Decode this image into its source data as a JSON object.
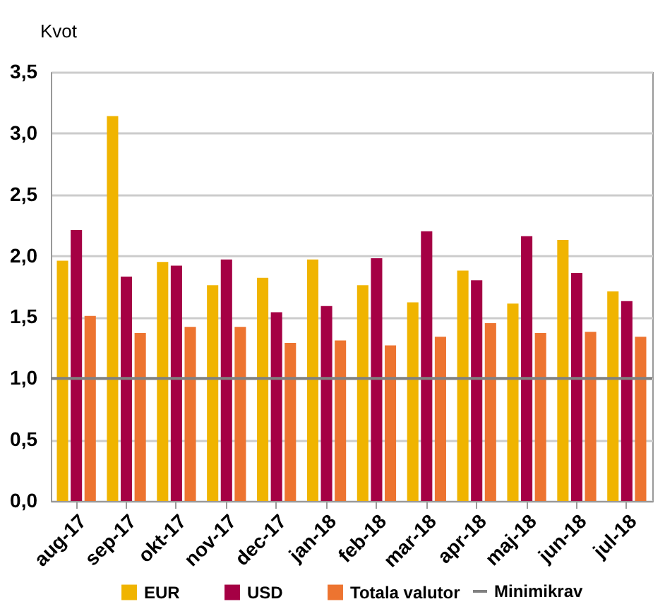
{
  "chart_data": {
    "type": "bar",
    "ylabel": "Kvot",
    "categories": [
      "aug-17",
      "sep-17",
      "okt-17",
      "nov-17",
      "dec-17",
      "jan-18",
      "feb-18",
      "mar-18",
      "apr-18",
      "maj-18",
      "jun-18",
      "jul-18"
    ],
    "series": [
      {
        "name": "EUR",
        "color": "#f0b400",
        "values": [
          1.96,
          3.14,
          1.95,
          1.76,
          1.82,
          1.97,
          1.76,
          1.62,
          1.88,
          1.61,
          2.13,
          1.71
        ]
      },
      {
        "name": "USD",
        "color": "#a50044",
        "values": [
          2.21,
          1.83,
          1.92,
          1.97,
          1.54,
          1.59,
          1.98,
          2.2,
          1.8,
          2.16,
          1.86,
          1.63
        ]
      },
      {
        "name": "Totala valutor",
        "color": "#ed7430",
        "values": [
          1.51,
          1.37,
          1.42,
          1.42,
          1.29,
          1.31,
          1.27,
          1.34,
          1.45,
          1.37,
          1.38,
          1.34
        ]
      }
    ],
    "ylim": [
      0,
      3.5
    ],
    "yticks": [
      {
        "value": 0,
        "label": "0,0"
      },
      {
        "value": 0.5,
        "label": "0,5"
      },
      {
        "value": 1,
        "label": "1,0"
      },
      {
        "value": 1.5,
        "label": "1,5"
      },
      {
        "value": 2,
        "label": "2,0"
      },
      {
        "value": 2.5,
        "label": "2,5"
      },
      {
        "value": 3,
        "label": "3,0"
      },
      {
        "value": 3.5,
        "label": "3,5"
      }
    ],
    "grid": "y",
    "legend": "bottom",
    "ref_lines": [
      {
        "axis": "y",
        "value": 1,
        "label": "Minimikrav",
        "color": "#808080"
      }
    ]
  }
}
